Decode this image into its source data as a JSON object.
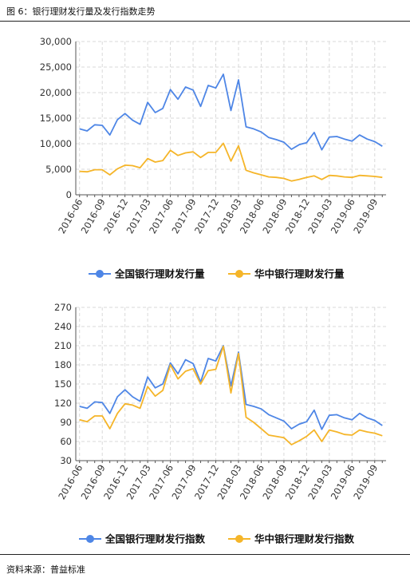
{
  "figure_title": "图 6：银行理财发行量及发行指数走势",
  "source_text": "资料来源：普益标准",
  "colors": {
    "national": "#4e86e6",
    "central": "#f5b529",
    "grid": "#d9d9d9",
    "axis": "#555555"
  },
  "chart_data": [
    {
      "type": "line",
      "title": "",
      "xlabel": "",
      "ylabel": "",
      "ylim": [
        0,
        30000
      ],
      "yticks": [
        "0",
        "5,000",
        "10,000",
        "15,000",
        "20,000",
        "25,000",
        "30,000"
      ],
      "xticks": [
        "2016-06",
        "2016-09",
        "2016-12",
        "2017-03",
        "2017-06",
        "2017-09",
        "2017-12",
        "2018-03",
        "2018-06",
        "2018-09",
        "2018-12",
        "2019-03",
        "2019-06",
        "2019-09"
      ],
      "grid": true,
      "legend_position": "bottom",
      "x": [
        "2016-06",
        "2016-07",
        "2016-08",
        "2016-09",
        "2016-10",
        "2016-11",
        "2016-12",
        "2017-01",
        "2017-02",
        "2017-03",
        "2017-04",
        "2017-05",
        "2017-06",
        "2017-07",
        "2017-08",
        "2017-09",
        "2017-10",
        "2017-11",
        "2017-12",
        "2018-01",
        "2018-02",
        "2018-03",
        "2018-04",
        "2018-05",
        "2018-06",
        "2018-07",
        "2018-08",
        "2018-09",
        "2018-10",
        "2018-11",
        "2018-12",
        "2019-01",
        "2019-02",
        "2019-03",
        "2019-04",
        "2019-05",
        "2019-06",
        "2019-07",
        "2019-08",
        "2019-09",
        "2019-10"
      ],
      "series": [
        {
          "name": "全国银行理财发行量",
          "color": "#4e86e6",
          "values": [
            12900,
            12500,
            13700,
            13600,
            11700,
            14700,
            15900,
            14600,
            13800,
            18100,
            16100,
            16900,
            20600,
            18700,
            21100,
            20500,
            17300,
            21400,
            20900,
            23600,
            16500,
            22500,
            13300,
            12900,
            12300,
            11200,
            10800,
            10300,
            8900,
            9800,
            10200,
            12200,
            8800,
            11300,
            11400,
            10900,
            10500,
            11700,
            10900,
            10400,
            9500
          ]
        },
        {
          "name": "华中银行理财发行量",
          "color": "#f5b529",
          "values": [
            4600,
            4500,
            4900,
            4900,
            3900,
            5100,
            5800,
            5700,
            5300,
            7100,
            6400,
            6700,
            8700,
            7700,
            8200,
            8400,
            7300,
            8300,
            8300,
            10100,
            6600,
            9600,
            4800,
            4300,
            3900,
            3500,
            3400,
            3200,
            2700,
            3000,
            3400,
            3700,
            3000,
            3800,
            3700,
            3500,
            3400,
            3800,
            3700,
            3600,
            3400
          ]
        }
      ]
    },
    {
      "type": "line",
      "title": "",
      "xlabel": "",
      "ylabel": "",
      "ylim": [
        30,
        270
      ],
      "yticks": [
        "30",
        "60",
        "90",
        "120",
        "150",
        "180",
        "210",
        "240",
        "270"
      ],
      "xticks": [
        "2016-06",
        "2016-09",
        "2016-12",
        "2017-03",
        "2017-06",
        "2017-09",
        "2017-12",
        "2018-03",
        "2018-06",
        "2018-09",
        "2018-12",
        "2019-03",
        "2019-06",
        "2019-09"
      ],
      "grid": true,
      "legend_position": "bottom",
      "x": [
        "2016-06",
        "2016-07",
        "2016-08",
        "2016-09",
        "2016-10",
        "2016-11",
        "2016-12",
        "2017-01",
        "2017-02",
        "2017-03",
        "2017-04",
        "2017-05",
        "2017-06",
        "2017-07",
        "2017-08",
        "2017-09",
        "2017-10",
        "2017-11",
        "2017-12",
        "2018-01",
        "2018-02",
        "2018-03",
        "2018-04",
        "2018-05",
        "2018-06",
        "2018-07",
        "2018-08",
        "2018-09",
        "2018-10",
        "2018-11",
        "2018-12",
        "2019-01",
        "2019-02",
        "2019-03",
        "2019-04",
        "2019-05",
        "2019-06",
        "2019-07",
        "2019-08",
        "2019-09",
        "2019-10"
      ],
      "series": [
        {
          "name": "全国银行理财发行指数",
          "color": "#4e86e6",
          "values": [
            115,
            112,
            122,
            121,
            104,
            130,
            141,
            130,
            123,
            161,
            144,
            150,
            183,
            166,
            188,
            182,
            153,
            190,
            186,
            210,
            147,
            200,
            118,
            115,
            111,
            102,
            97,
            92,
            80,
            87,
            91,
            109,
            79,
            101,
            102,
            97,
            94,
            104,
            97,
            93,
            85
          ]
        },
        {
          "name": "华中银行理财发行指数",
          "color": "#f5b529",
          "values": [
            94,
            91,
            100,
            100,
            80,
            104,
            119,
            117,
            112,
            146,
            131,
            140,
            180,
            158,
            170,
            174,
            150,
            171,
            173,
            209,
            136,
            198,
            98,
            90,
            80,
            70,
            68,
            66,
            55,
            61,
            68,
            78,
            60,
            78,
            75,
            71,
            70,
            78,
            75,
            73,
            69
          ]
        }
      ]
    }
  ]
}
